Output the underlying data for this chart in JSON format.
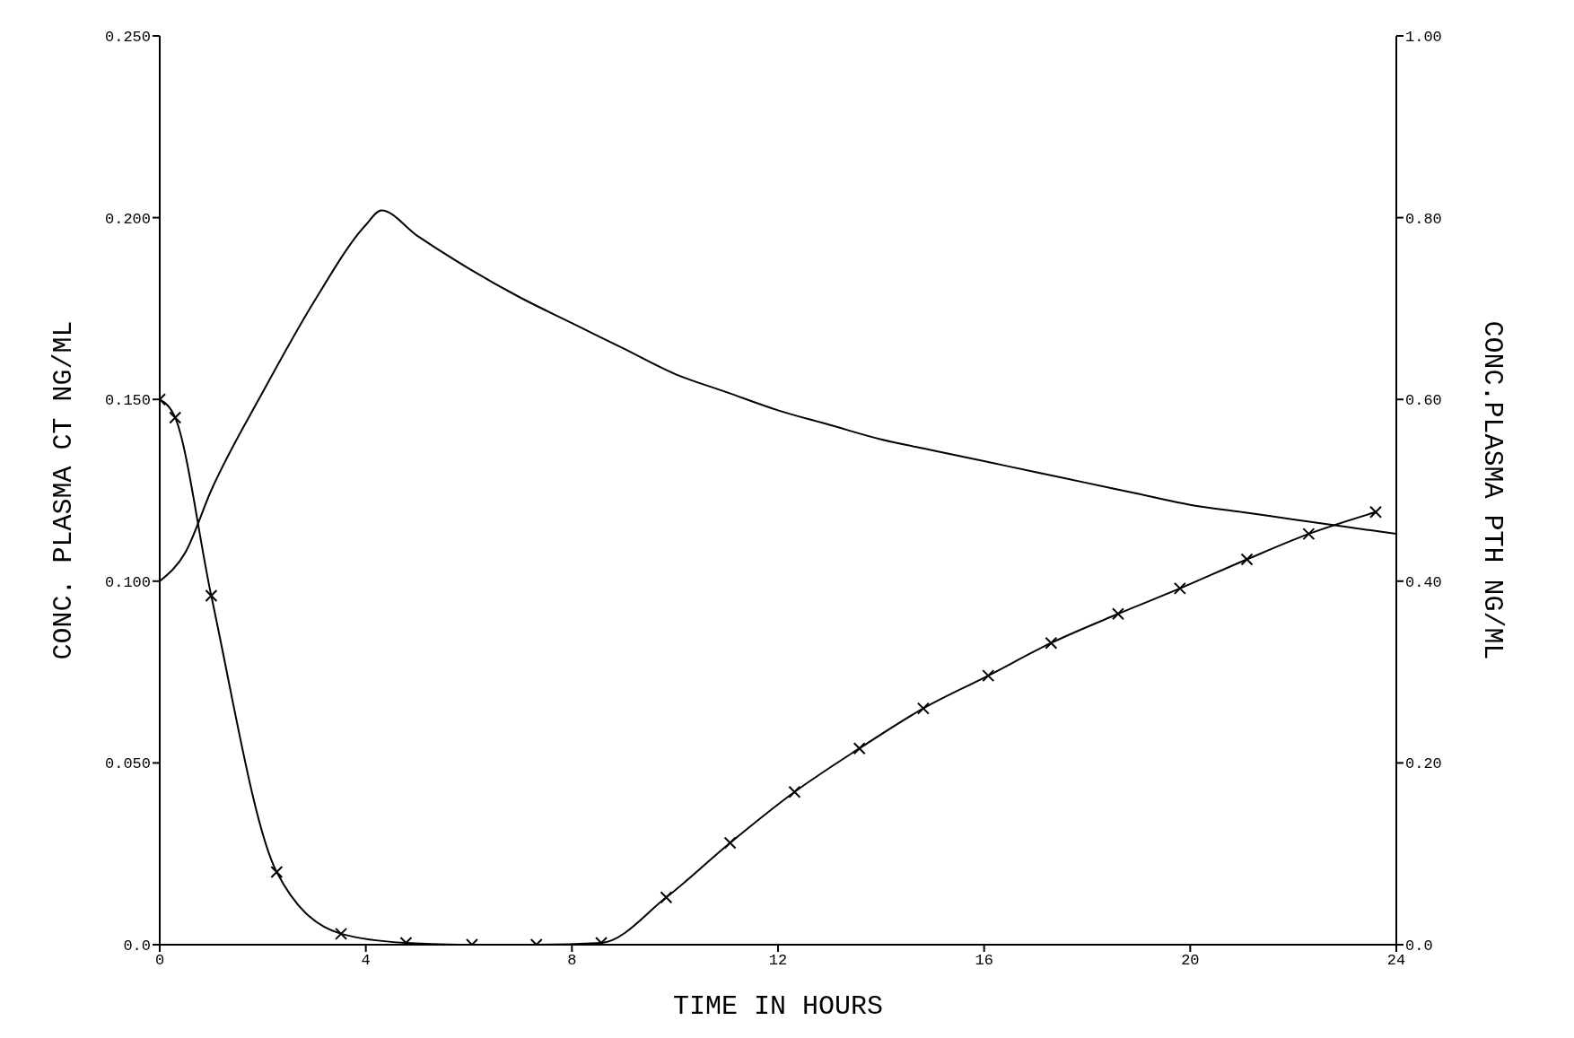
{
  "chart_data": {
    "type": "line",
    "xlabel": "TIME IN HOURS",
    "ylabel": "CONC. PLASMA CT NG/ML",
    "y2label": "CONC.PLASMA PTH NG/ML",
    "xlim": [
      0,
      24
    ],
    "xticks": [
      0,
      4,
      8,
      12,
      16,
      20,
      24
    ],
    "ylim": [
      0,
      0.25
    ],
    "yticks": [
      {
        "value": 0,
        "label": "0.0"
      },
      {
        "value": 0.05,
        "label": "0.050"
      },
      {
        "value": 0.1,
        "label": "0.100"
      },
      {
        "value": 0.15,
        "label": "0.150"
      },
      {
        "value": 0.2,
        "label": "0.200"
      },
      {
        "value": 0.25,
        "label": "0.250"
      }
    ],
    "y2lim": [
      0,
      1
    ],
    "y2ticks": [
      {
        "value": 0,
        "label": "0.0"
      },
      {
        "value": 0.2,
        "label": "0.20"
      },
      {
        "value": 0.4,
        "label": "0.40"
      },
      {
        "value": 0.6,
        "label": "0.60"
      },
      {
        "value": 0.8,
        "label": "0.80"
      },
      {
        "value": 1,
        "label": "1.00"
      }
    ],
    "grid": false,
    "legend": false,
    "series": [
      {
        "color": "#000000",
        "marker": "none",
        "x": [
          0,
          0.5,
          1,
          2,
          3,
          4,
          4.3,
          5,
          6,
          7,
          8,
          9,
          10,
          11,
          12,
          13,
          14,
          15,
          16,
          17,
          18,
          19,
          20,
          21,
          22,
          23,
          24
        ],
        "values": [
          0.1,
          0.108,
          0.125,
          0.152,
          0.177,
          0.198,
          0.202,
          0.195,
          0.186,
          0.178,
          0.171,
          0.164,
          0.157,
          0.152,
          0.147,
          0.143,
          0.139,
          0.136,
          0.133,
          0.13,
          0.127,
          0.124,
          0.121,
          0.119,
          0.117,
          0.115,
          0.113
        ]
      },
      {
        "color": "#000000",
        "marker": "cross",
        "axis": "y2",
        "x": [
          0,
          0.3,
          1.0,
          2.27,
          3.52,
          4.78,
          6.06,
          7.31,
          8.57,
          9.83,
          11.07,
          12.32,
          13.58,
          14.82,
          16.08,
          17.3,
          18.6,
          19.8,
          21.1,
          22.3,
          23.6
        ],
        "values": [
          0.6,
          0.58,
          0.384,
          0.08,
          0.012,
          0.002,
          0,
          0,
          0.002,
          0.052,
          0.112,
          0.168,
          0.216,
          0.26,
          0.296,
          0.332,
          0.364,
          0.392,
          0.424,
          0.452,
          0.476
        ]
      }
    ]
  }
}
